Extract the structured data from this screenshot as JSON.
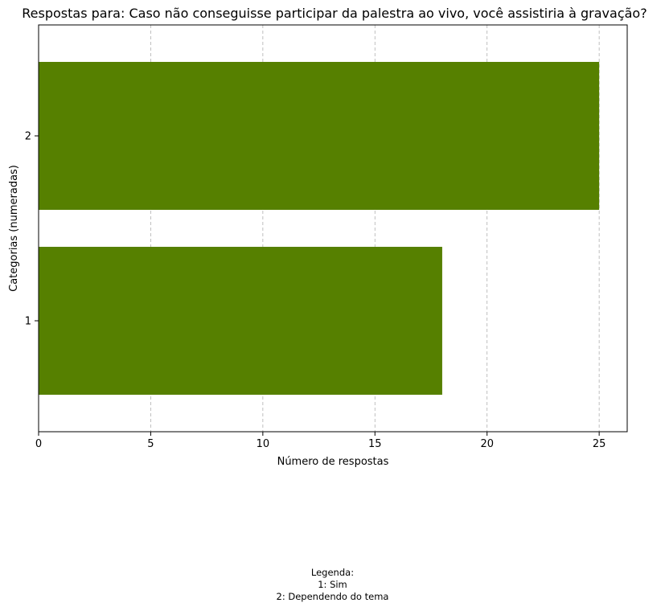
{
  "chart_data": {
    "type": "bar",
    "orientation": "horizontal",
    "title": "Respostas para: Caso não conseguisse participar da palestra ao vivo, você assistiria à gravação?",
    "xlabel": "Número de respostas",
    "ylabel": "Categorias (numeradas)",
    "categories": [
      "1",
      "2"
    ],
    "values": [
      18,
      25
    ],
    "xlim": [
      0,
      26.25
    ],
    "xticks": [
      0,
      5,
      10,
      15,
      20,
      25
    ],
    "grid": "x-dashed",
    "bar_color": "#568000",
    "legend": {
      "title": "Legenda:",
      "entries": [
        "1: Sim",
        "2: Dependendo do tema"
      ]
    }
  }
}
